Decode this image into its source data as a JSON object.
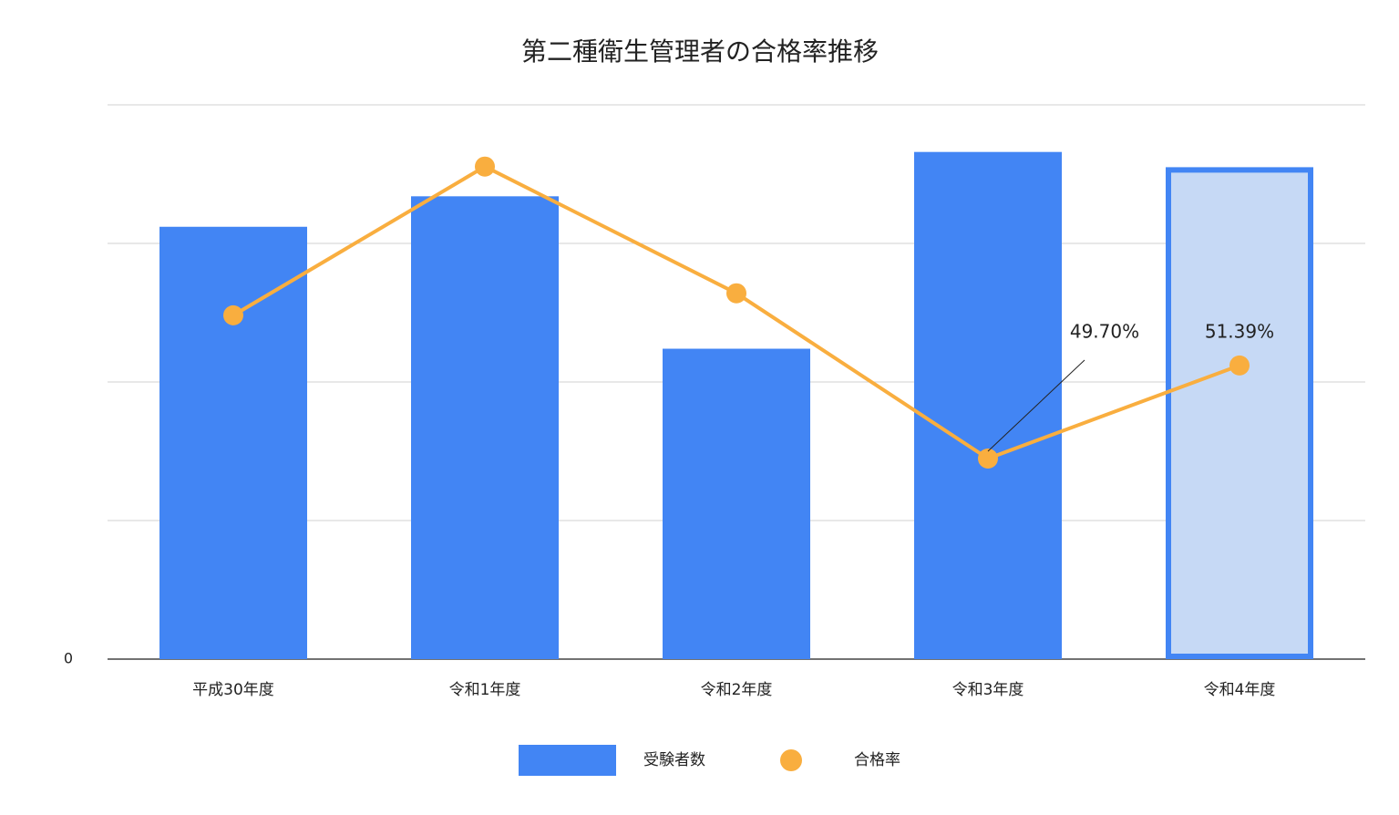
{
  "chart_data": {
    "type": "bar-line",
    "title": "第二種衛生管理者の合格率推移",
    "categories": [
      "平成30年度",
      "令和1年度",
      "令和2年度",
      "令和3年度",
      "令和4年度"
    ],
    "series": [
      {
        "name": "受験者数",
        "type": "bar",
        "color": "#4285f4",
        "values": [
          31200,
          33400,
          22400,
          36600,
          35500
        ]
      },
      {
        "name": "合格率",
        "type": "line",
        "axis": "y2",
        "color": "#f9ae3f",
        "values": [
          52.3,
          55.0,
          52.7,
          49.7,
          51.39
        ],
        "value_labels": [
          null,
          null,
          null,
          "49.70%",
          "51.39%"
        ]
      }
    ],
    "highlight_index": 4,
    "highlight_color": "#c6d9f5",
    "ylim": [
      0,
      40000
    ],
    "yticks": [
      0
    ],
    "gridlines": [
      10000,
      20000,
      30000,
      40000
    ],
    "y2lim": [
      46.06,
      56.12
    ],
    "grid": true,
    "legend": "bottom"
  }
}
